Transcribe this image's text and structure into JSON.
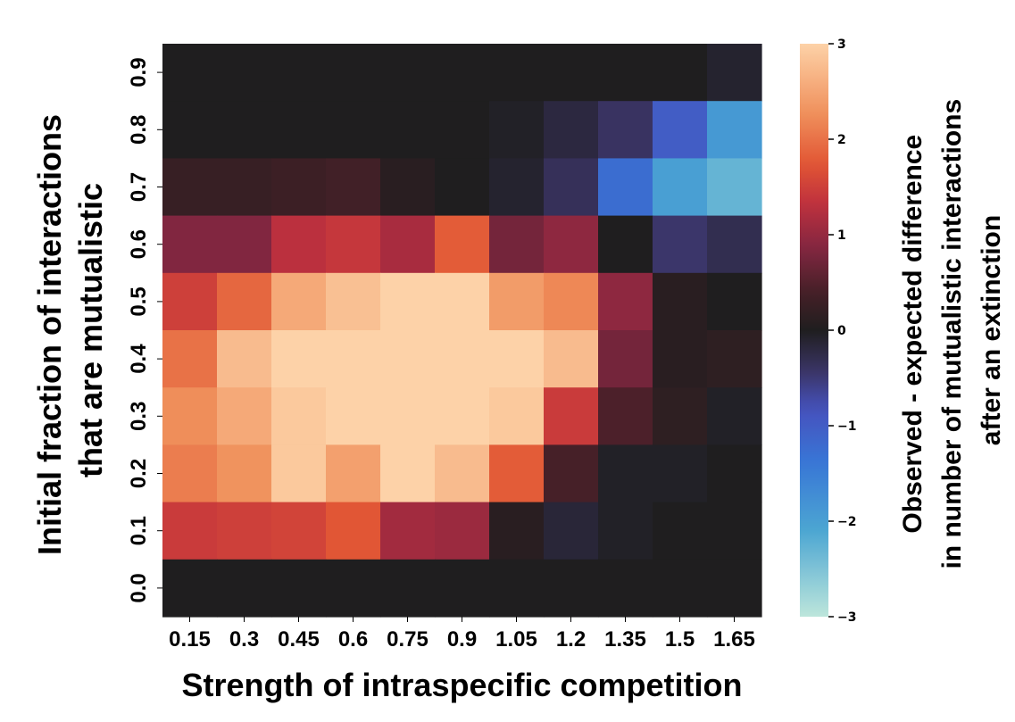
{
  "chart_data": {
    "type": "heatmap",
    "xlabel": "Strength of intraspecific competition",
    "ylabel_lines": [
      "Initial fraction of interactions",
      "that are mutualistic"
    ],
    "colorbar_label_lines": [
      "Observed - expected difference",
      "in number of mutualistic interactions",
      "after an extinction"
    ],
    "x_ticks": [
      "0.15",
      "0.3",
      "0.45",
      "0.6",
      "0.75",
      "0.9",
      "1.05",
      "1.2",
      "1.35",
      "1.5",
      "1.65"
    ],
    "y_ticks": [
      "0.9",
      "0.8",
      "0.7",
      "0.6",
      "0.5",
      "0.4",
      "0.3",
      "0.2",
      "0.1",
      "0.0"
    ],
    "colorbar_ticks": [
      "3",
      "2",
      "1",
      "0",
      "−1",
      "−2",
      "−3"
    ],
    "vmin": -3,
    "vmax": 3,
    "colormap": "icefire",
    "values": [
      [
        0,
        0,
        0,
        0,
        0,
        0,
        0,
        0,
        0,
        0,
        -0.1
      ],
      [
        0,
        0,
        0,
        0,
        0,
        0,
        -0.05,
        -0.2,
        -0.4,
        -1.0,
        -1.9
      ],
      [
        0.25,
        0.25,
        0.3,
        0.35,
        0.1,
        0,
        -0.1,
        -0.35,
        -1.25,
        -2.0,
        -2.3
      ],
      [
        0.85,
        0.85,
        1.3,
        1.4,
        1.15,
        1.8,
        0.75,
        0.95,
        0,
        -0.45,
        -0.3
      ],
      [
        1.5,
        1.9,
        2.55,
        2.8,
        3.0,
        3.0,
        2.4,
        2.2,
        0.95,
        0.1,
        0
      ],
      [
        2.0,
        2.75,
        3.0,
        3.0,
        3.0,
        3.0,
        3.0,
        2.75,
        0.75,
        0.1,
        0.15
      ],
      [
        2.25,
        2.55,
        2.9,
        3.0,
        3.0,
        3.0,
        2.9,
        1.45,
        0.45,
        0.15,
        -0.05
      ],
      [
        2.1,
        2.3,
        2.9,
        2.45,
        3.0,
        2.75,
        1.8,
        0.4,
        -0.05,
        -0.05,
        0
      ],
      [
        1.45,
        1.5,
        1.55,
        1.75,
        1.1,
        1.05,
        0.1,
        -0.15,
        -0.05,
        0,
        0
      ],
      [
        0,
        0,
        0,
        0,
        0,
        0,
        0,
        0,
        0,
        0,
        0
      ]
    ]
  }
}
